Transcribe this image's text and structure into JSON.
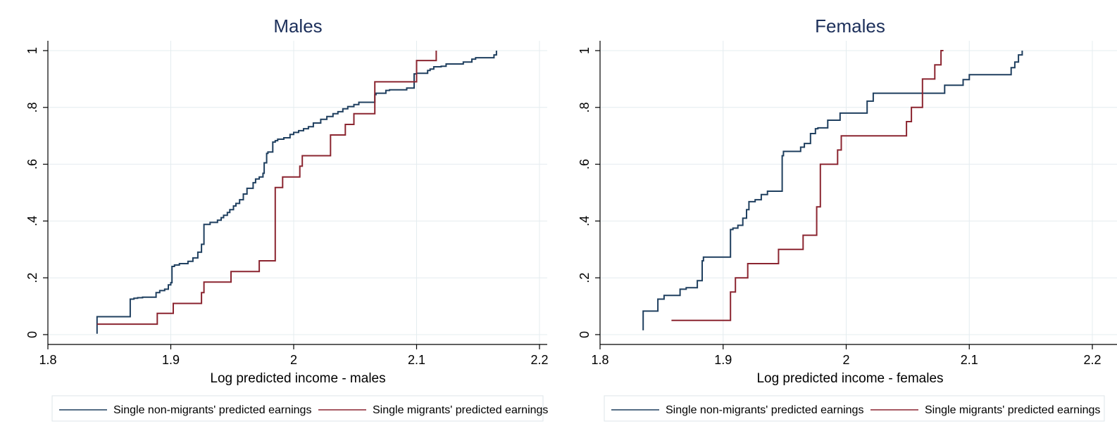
{
  "colors": {
    "non_migrant": "#1f3f5f",
    "migrant": "#8b2530",
    "grid": "#e4ecef",
    "axis": "#000000",
    "title": "#1c2f5a"
  },
  "chart_data": [
    {
      "type": "line",
      "title": "Males",
      "xlabel": "Log predicted income - males",
      "ylabel": "",
      "xlim": [
        1.8,
        2.2
      ],
      "ylim": [
        0,
        1
      ],
      "xticks": [
        1.8,
        1.9,
        2.0,
        2.1,
        2.2
      ],
      "xtick_labels": [
        "1.8",
        "1.9",
        "2",
        "2.1",
        "2.2"
      ],
      "yticks": [
        0,
        0.2,
        0.4,
        0.6,
        0.8,
        1.0
      ],
      "ytick_labels": [
        "0",
        ".2",
        ".4",
        ".6",
        ".8",
        "1"
      ],
      "grid": true,
      "legend_position": "bottom",
      "series": [
        {
          "name": "Single non-migrants' predicted earnings",
          "color_key": "non_migrant",
          "step": true,
          "x": [
            1.84,
            1.84,
            1.867,
            1.87,
            1.873,
            1.877,
            1.888,
            1.891,
            1.895,
            1.898,
            1.9,
            1.901,
            1.903,
            1.907,
            1.914,
            1.918,
            1.922,
            1.925,
            1.927,
            1.932,
            1.938,
            1.941,
            1.943,
            1.946,
            1.948,
            1.951,
            1.953,
            1.956,
            1.959,
            1.962,
            1.967,
            1.969,
            1.972,
            1.975,
            1.976,
            1.978,
            1.979,
            1.983,
            1.985,
            1.987,
            1.992,
            1.997,
            2.0,
            2.004,
            2.008,
            2.012,
            2.016,
            2.022,
            2.027,
            2.032,
            2.036,
            2.04,
            2.044,
            2.049,
            2.053,
            2.066,
            2.067,
            2.075,
            2.078,
            2.092,
            2.098,
            2.1,
            2.109,
            2.111,
            2.114,
            2.12,
            2.124,
            2.138,
            2.145,
            2.148,
            2.163,
            2.165
          ],
          "y": [
            0.003,
            0.063,
            0.125,
            0.128,
            0.13,
            0.132,
            0.148,
            0.155,
            0.16,
            0.175,
            0.183,
            0.24,
            0.245,
            0.25,
            0.258,
            0.27,
            0.29,
            0.318,
            0.388,
            0.395,
            0.403,
            0.412,
            0.42,
            0.43,
            0.44,
            0.453,
            0.462,
            0.475,
            0.495,
            0.515,
            0.535,
            0.548,
            0.555,
            0.568,
            0.605,
            0.638,
            0.643,
            0.678,
            0.683,
            0.688,
            0.693,
            0.705,
            0.712,
            0.718,
            0.725,
            0.732,
            0.745,
            0.758,
            0.768,
            0.778,
            0.785,
            0.795,
            0.803,
            0.81,
            0.818,
            0.845,
            0.85,
            0.86,
            0.862,
            0.868,
            0.918,
            0.92,
            0.93,
            0.935,
            0.943,
            0.945,
            0.953,
            0.96,
            0.97,
            0.975,
            0.985,
            1.0
          ],
          "x_end": 2.165
        },
        {
          "name": "Single migrants' predicted earnings",
          "color_key": "migrant",
          "step": true,
          "x": [
            1.84,
            1.889,
            1.902,
            1.925,
            1.927,
            1.949,
            1.972,
            1.985,
            1.991,
            2.005,
            2.007,
            2.03,
            2.042,
            2.049,
            2.066,
            2.1,
            2.116
          ],
          "y": [
            0.037,
            0.075,
            0.11,
            0.148,
            0.185,
            0.222,
            0.26,
            0.518,
            0.555,
            0.593,
            0.63,
            0.703,
            0.74,
            0.778,
            0.89,
            0.965,
            1.0
          ],
          "x_end": 2.116
        }
      ]
    },
    {
      "type": "line",
      "title": "Females",
      "xlabel": "Log predicted income - females",
      "ylabel": "",
      "xlim": [
        1.8,
        2.2
      ],
      "ylim": [
        0,
        1
      ],
      "xticks": [
        1.8,
        1.9,
        2.0,
        2.1,
        2.2
      ],
      "xtick_labels": [
        "1.8",
        "1.9",
        "2",
        "2.1",
        "2.2"
      ],
      "yticks": [
        0,
        0.2,
        0.4,
        0.6,
        0.8,
        1.0
      ],
      "ytick_labels": [
        "0",
        ".2",
        ".4",
        ".6",
        ".8",
        "1"
      ],
      "grid": true,
      "legend_position": "bottom",
      "series": [
        {
          "name": "Single non-migrants' predicted earnings",
          "color_key": "non_migrant",
          "step": true,
          "x": [
            1.835,
            1.835,
            1.847,
            1.852,
            1.855,
            1.865,
            1.87,
            1.879,
            1.883,
            1.884,
            1.906,
            1.908,
            1.912,
            1.916,
            1.919,
            1.921,
            1.923,
            1.926,
            1.931,
            1.936,
            1.948,
            1.949,
            1.954,
            1.963,
            1.966,
            1.971,
            1.975,
            1.977,
            1.985,
            1.995,
            2.017,
            2.022,
            2.08,
            2.095,
            2.1,
            2.134,
            2.137,
            2.14,
            2.143
          ],
          "y": [
            0.015,
            0.083,
            0.125,
            0.138,
            0.138,
            0.16,
            0.165,
            0.19,
            0.26,
            0.273,
            0.37,
            0.375,
            0.385,
            0.41,
            0.44,
            0.468,
            0.468,
            0.475,
            0.493,
            0.505,
            0.63,
            0.645,
            0.645,
            0.66,
            0.673,
            0.708,
            0.725,
            0.728,
            0.755,
            0.78,
            0.822,
            0.85,
            0.878,
            0.898,
            0.915,
            0.94,
            0.96,
            0.985,
            1.0
          ],
          "x_end": 2.143
        },
        {
          "name": "Single migrants' predicted earnings",
          "color_key": "migrant",
          "step": true,
          "x": [
            1.858,
            1.906,
            1.91,
            1.92,
            1.945,
            1.965,
            1.976,
            1.979,
            1.993,
            1.996,
            2.049,
            2.053,
            2.062,
            2.072,
            2.077
          ],
          "y": [
            0.05,
            0.15,
            0.2,
            0.25,
            0.3,
            0.35,
            0.45,
            0.6,
            0.65,
            0.7,
            0.75,
            0.8,
            0.9,
            0.95,
            1.0
          ],
          "x_end": 2.079
        }
      ]
    }
  ]
}
